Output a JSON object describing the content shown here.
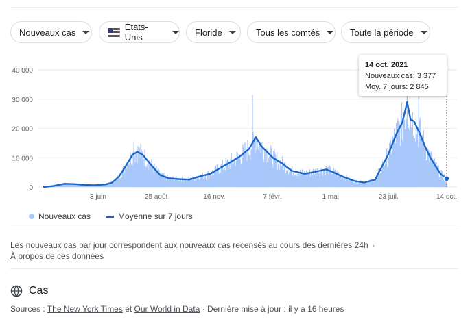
{
  "filters": [
    {
      "label": "Nouveaux cas",
      "name": "filter-metric"
    },
    {
      "label": "États-Unis",
      "name": "filter-country",
      "flag": true
    },
    {
      "label": "Floride",
      "name": "filter-region"
    },
    {
      "label": "Tous les comtés",
      "name": "filter-county"
    },
    {
      "label": "Toute la période",
      "name": "filter-period"
    }
  ],
  "tooltip": {
    "date": "14 oct. 2021",
    "new_cases_label": "Nouveaux cas",
    "new_cases_value": "3 377",
    "avg_label": "Moy. 7 jours",
    "avg_value": "2 845"
  },
  "legend": {
    "bars_label": "Nouveaux cas",
    "line_label": "Moyenne sur 7 jours"
  },
  "note": {
    "text": "Les nouveaux cas par jour correspondent aux nouveaux cas recensés au cours des dernières 24h",
    "bullet": "·",
    "about_link": "À propos de ces données"
  },
  "section": {
    "title": "Cas",
    "icon": "globe-icon"
  },
  "sources": {
    "prefix": "Sources : ",
    "link1": "The New York Times",
    "middle": " et ",
    "link2": "Our World in Data",
    "suffix": " · Dernière mise à jour : il y a 16 heures"
  },
  "colors": {
    "bars": "#a8c7fa",
    "line": "#1a66c8",
    "grid": "#e8eaed",
    "axis_text": "#5f6368"
  },
  "chart_data": {
    "type": "bar",
    "title": "",
    "xlabel": "",
    "ylabel": "",
    "ylim": [
      0,
      40000
    ],
    "yticks": [
      "40 000",
      "30 000",
      "20 000",
      "10 000",
      "0"
    ],
    "ytick_values": [
      40000,
      30000,
      20000,
      10000,
      0
    ],
    "xticks": [
      "3 juin",
      "25 août",
      "16 nov.",
      "7 févr.",
      "1 mai",
      "23 juil.",
      "14 oct."
    ],
    "x_start": "2020-03-01",
    "x_end": "2021-10-14",
    "grid": true,
    "legend_position": "bottom-left",
    "series": [
      {
        "name": "Moyenne sur 7 jours",
        "points": [
          [
            "2020-03-01",
            0
          ],
          [
            "2020-03-15",
            300
          ],
          [
            "2020-04-01",
            1100
          ],
          [
            "2020-04-15",
            1000
          ],
          [
            "2020-05-01",
            700
          ],
          [
            "2020-05-15",
            600
          ],
          [
            "2020-06-01",
            900
          ],
          [
            "2020-06-10",
            1500
          ],
          [
            "2020-06-20",
            3500
          ],
          [
            "2020-07-01",
            7500
          ],
          [
            "2020-07-10",
            11000
          ],
          [
            "2020-07-17",
            12000
          ],
          [
            "2020-07-25",
            11000
          ],
          [
            "2020-08-01",
            9000
          ],
          [
            "2020-08-10",
            6500
          ],
          [
            "2020-08-20",
            4000
          ],
          [
            "2020-09-01",
            3000
          ],
          [
            "2020-09-15",
            2700
          ],
          [
            "2020-10-01",
            2500
          ],
          [
            "2020-10-15",
            3500
          ],
          [
            "2020-11-01",
            4500
          ],
          [
            "2020-11-16",
            6500
          ],
          [
            "2020-12-01",
            8500
          ],
          [
            "2020-12-15",
            10500
          ],
          [
            "2020-12-28",
            13000
          ],
          [
            "2021-01-07",
            17000
          ],
          [
            "2021-01-15",
            14000
          ],
          [
            "2021-02-01",
            10000
          ],
          [
            "2021-02-15",
            8000
          ],
          [
            "2021-03-01",
            5500
          ],
          [
            "2021-03-20",
            4500
          ],
          [
            "2021-04-10",
            5500
          ],
          [
            "2021-04-20",
            6000
          ],
          [
            "2021-05-01",
            5000
          ],
          [
            "2021-05-15",
            3500
          ],
          [
            "2021-06-01",
            2000
          ],
          [
            "2021-06-15",
            1500
          ],
          [
            "2021-07-01",
            2500
          ],
          [
            "2021-07-10",
            6500
          ],
          [
            "2021-07-20",
            11000
          ],
          [
            "2021-08-01",
            18000
          ],
          [
            "2021-08-10",
            22000
          ],
          [
            "2021-08-17",
            29000
          ],
          [
            "2021-08-22",
            23000
          ],
          [
            "2021-08-27",
            22500
          ],
          [
            "2021-09-05",
            18000
          ],
          [
            "2021-09-12",
            14000
          ],
          [
            "2021-09-20",
            10000
          ],
          [
            "2021-09-28",
            7000
          ],
          [
            "2021-10-05",
            4500
          ],
          [
            "2021-10-14",
            2845
          ]
        ]
      },
      {
        "name": "Nouveaux cas",
        "points": [
          [
            "2020-07-12",
            15300
          ],
          [
            "2021-01-02",
            31500
          ],
          [
            "2021-08-17",
            40000
          ],
          [
            "2021-09-03",
            31000
          ],
          [
            "2021-10-14",
            3377
          ]
        ]
      }
    ]
  }
}
